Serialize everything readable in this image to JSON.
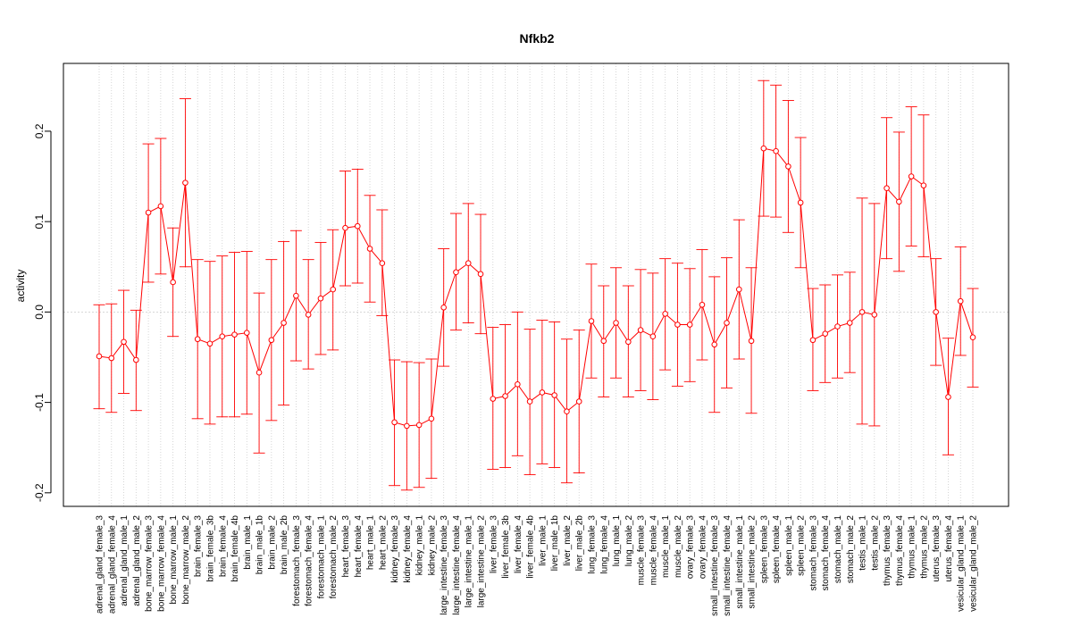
{
  "chart_data": {
    "type": "line",
    "title": "Nfkb2",
    "xlabel": "",
    "ylabel": "activity",
    "ylim": [
      -0.215,
      0.275
    ],
    "yticks": [
      -0.2,
      -0.1,
      0.0,
      0.1,
      0.2
    ],
    "ytick_labels": [
      "-0.2",
      "-0.1",
      "0.0",
      "0.1",
      "0.2"
    ],
    "grid": true,
    "series_color": "#FF0000",
    "grid_color": "#CCCCCC",
    "categories": [
      "adrenal_gland_female_3",
      "adrenal_gland_female_4",
      "adrenal_gland_male_1",
      "adrenal_gland_male_2",
      "bone_marrow_female_3",
      "bone_marrow_female_4",
      "bone_marrow_male_1",
      "bone_marrow_male_2",
      "brain_female_3",
      "brain_female_3b",
      "brain_female_4",
      "brain_female_4b",
      "brain_male_1",
      "brain_male_1b",
      "brain_male_2",
      "brain_male_2b",
      "forestomach_female_3",
      "forestomach_female_4",
      "forestomach_male_1",
      "forestomach_male_2",
      "heart_female_3",
      "heart_female_4",
      "heart_male_1",
      "heart_male_2",
      "kidney_female_3",
      "kidney_female_4",
      "kidney_male_1",
      "kidney_male_2",
      "large_intestine_female_3",
      "large_intestine_female_4",
      "large_intestine_male_1",
      "large_intestine_male_2",
      "liver_female_3",
      "liver_female_3b",
      "liver_female_4",
      "liver_female_4b",
      "liver_male_1",
      "liver_male_1b",
      "liver_male_2",
      "liver_male_2b",
      "lung_female_3",
      "lung_female_4",
      "lung_male_1",
      "lung_male_2",
      "muscle_female_3",
      "muscle_female_4",
      "muscle_male_1",
      "muscle_male_2",
      "ovary_female_3",
      "ovary_female_4",
      "small_intestine_female_3",
      "small_intestine_female_4",
      "small_intestine_male_1",
      "small_intestine_male_2",
      "spleen_female_3",
      "spleen_female_4",
      "spleen_male_1",
      "spleen_male_2",
      "stomach_female_3",
      "stomach_female_4",
      "stomach_male_1",
      "stomach_male_2",
      "testis_male_1",
      "testis_male_2",
      "thymus_female_3",
      "thymus_female_4",
      "thymus_male_1",
      "thymus_male_2",
      "uterus_female_3",
      "uterus_female_4",
      "vesicular_gland_male_1",
      "vesicular_gland_male_2"
    ],
    "values": [
      -0.049,
      -0.051,
      -0.033,
      -0.053,
      0.11,
      0.117,
      0.033,
      0.143,
      -0.03,
      -0.035,
      -0.027,
      -0.025,
      -0.023,
      -0.067,
      -0.031,
      -0.012,
      0.018,
      -0.003,
      0.015,
      0.025,
      0.093,
      0.095,
      0.07,
      0.054,
      -0.122,
      -0.126,
      -0.125,
      -0.118,
      0.005,
      0.044,
      0.054,
      0.042,
      -0.096,
      -0.093,
      -0.08,
      -0.099,
      -0.089,
      -0.092,
      -0.11,
      -0.099,
      -0.01,
      -0.032,
      -0.012,
      -0.033,
      -0.02,
      -0.027,
      -0.002,
      -0.014,
      -0.014,
      0.008,
      -0.036,
      -0.012,
      0.025,
      -0.032,
      0.181,
      0.178,
      0.161,
      0.121,
      -0.031,
      -0.024,
      -0.016,
      -0.012,
      0.0,
      -0.003,
      0.137,
      0.122,
      0.15,
      0.14,
      0.0,
      -0.094,
      0.012,
      -0.028
    ],
    "lower": [
      -0.107,
      -0.111,
      -0.09,
      -0.109,
      0.033,
      0.042,
      -0.027,
      0.05,
      -0.118,
      -0.124,
      -0.116,
      -0.116,
      -0.113,
      -0.156,
      -0.12,
      -0.103,
      -0.054,
      -0.063,
      -0.047,
      -0.042,
      0.029,
      0.032,
      0.011,
      -0.004,
      -0.192,
      -0.197,
      -0.194,
      -0.184,
      -0.06,
      -0.02,
      -0.012,
      -0.024,
      -0.174,
      -0.172,
      -0.159,
      -0.18,
      -0.168,
      -0.172,
      -0.189,
      -0.178,
      -0.073,
      -0.094,
      -0.073,
      -0.094,
      -0.087,
      -0.097,
      -0.064,
      -0.082,
      -0.077,
      -0.053,
      -0.111,
      -0.084,
      -0.052,
      -0.112,
      0.106,
      0.105,
      0.088,
      0.049,
      -0.087,
      -0.078,
      -0.073,
      -0.067,
      -0.124,
      -0.126,
      0.059,
      0.045,
      0.073,
      0.061,
      -0.059,
      -0.158,
      -0.048,
      -0.083
    ],
    "upper": [
      0.008,
      0.009,
      0.024,
      0.002,
      0.186,
      0.192,
      0.093,
      0.236,
      0.058,
      0.056,
      0.062,
      0.066,
      0.067,
      0.021,
      0.058,
      0.078,
      0.09,
      0.058,
      0.077,
      0.091,
      0.156,
      0.158,
      0.129,
      0.113,
      -0.053,
      -0.055,
      -0.056,
      -0.052,
      0.07,
      0.109,
      0.12,
      0.108,
      -0.017,
      -0.014,
      0.0,
      -0.019,
      -0.009,
      -0.011,
      -0.03,
      -0.02,
      0.053,
      0.029,
      0.049,
      0.029,
      0.047,
      0.043,
      0.059,
      0.054,
      0.048,
      0.069,
      0.039,
      0.06,
      0.102,
      0.049,
      0.256,
      0.251,
      0.234,
      0.193,
      0.026,
      0.03,
      0.041,
      0.044,
      0.126,
      0.12,
      0.215,
      0.199,
      0.227,
      0.218,
      0.059,
      -0.029,
      0.072,
      0.026
    ]
  }
}
